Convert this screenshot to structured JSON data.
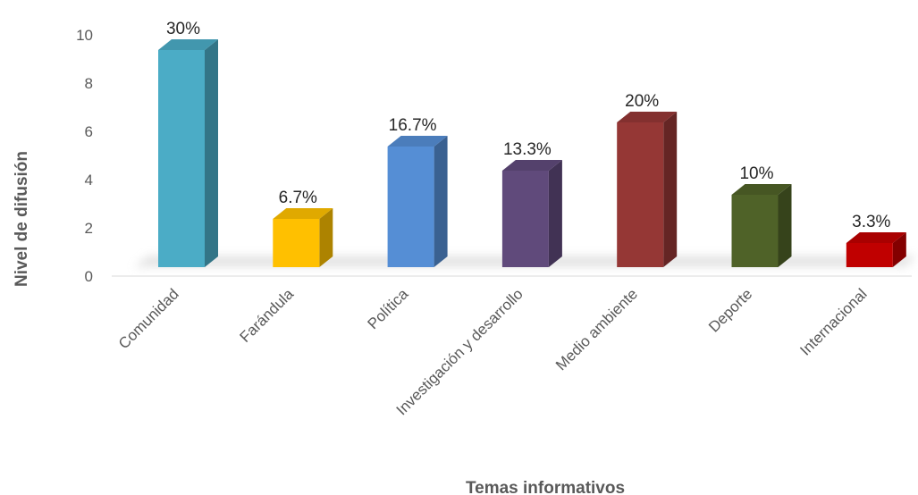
{
  "chart_data": {
    "type": "bar",
    "title": "",
    "xlabel": "Temas informativos",
    "ylabel": "Nivel de difusión",
    "ylim": [
      0,
      10
    ],
    "yticks": [
      0,
      2,
      4,
      6,
      8,
      10
    ],
    "grid": false,
    "categories": [
      "Comunidad",
      "Farándula",
      "Política",
      "Investigación y desarrollo",
      "Medio ambiente",
      "Deporte",
      "Internacional"
    ],
    "values": [
      9,
      2,
      5,
      4,
      6,
      3,
      1
    ],
    "data_labels": [
      "30%",
      "6.7%",
      "16.7%",
      "13.3%",
      "20%",
      "10%",
      "3.3%"
    ],
    "colors": [
      "#4BACC6",
      "#FFC000",
      "#558ED5",
      "#604A7B",
      "#953735",
      "#4F6228",
      "#C00000"
    ]
  }
}
